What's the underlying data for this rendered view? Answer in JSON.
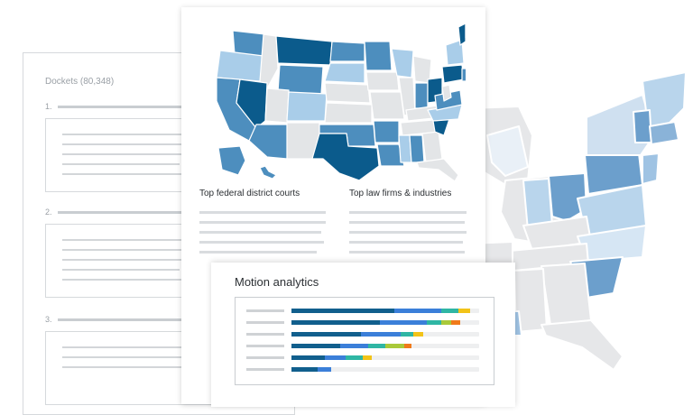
{
  "dockets": {
    "title": "Dockets (80,348)",
    "items": [
      {
        "num": "1."
      },
      {
        "num": "2."
      },
      {
        "num": "3."
      }
    ]
  },
  "map_card": {
    "col1_title": "Top federal district courts",
    "col2_title": "Top law firms & industries"
  },
  "motion": {
    "title": "Motion analytics",
    "segment_colors": [
      "#115f8d",
      "#3b7fd9",
      "#2fb6a4",
      "#a9c93a",
      "#f07a1a",
      "#f2c318"
    ],
    "rows": [
      {
        "segments": [
          0.55,
          0.25,
          0.09,
          0,
          0,
          0.06
        ]
      },
      {
        "segments": [
          0.47,
          0.25,
          0.08,
          0.05,
          0.05,
          0
        ]
      },
      {
        "segments": [
          0.37,
          0.21,
          0.07,
          0,
          0,
          0.05
        ]
      },
      {
        "segments": [
          0.26,
          0.15,
          0.09,
          0.1,
          0.04,
          0
        ]
      },
      {
        "segments": [
          0.18,
          0.11,
          0.09,
          0,
          0,
          0.05
        ]
      },
      {
        "segments": [
          0.14,
          0.07,
          0,
          0,
          0,
          0
        ]
      }
    ]
  },
  "map": {
    "colors": {
      "dark": "#0b5b8c",
      "mid": "#4d8ebe",
      "light": "#a9cde9",
      "gray": "#e3e5e7"
    }
  }
}
